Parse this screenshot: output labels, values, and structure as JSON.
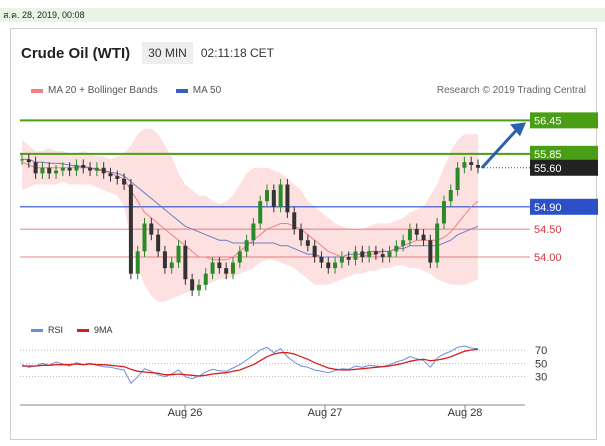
{
  "header": {
    "date_stamp": "ส.ค. 28, 2019, 00:08"
  },
  "chart_header": {
    "instrument": "Crude Oil (WTI)",
    "timeframe": "30 MIN",
    "time": "02:11:18 CET"
  },
  "legend": {
    "bollinger_label": "MA 20 + Bollinger Bands",
    "ma50_label": "MA 50",
    "credit": "Research © 2019 Trading Central"
  },
  "rsi_legend": {
    "rsi_label": "RSI",
    "ma_label": "9MA"
  },
  "colors": {
    "green": "#4a9e16",
    "blue": "#2b50c8",
    "red": "#d9363e",
    "dark_box": "#222222",
    "band_fill": "#fde0e0",
    "candle": "#333333",
    "candle_up": "#2a8a2a",
    "ma20": "#f08080",
    "ma50": "#6f7fc0",
    "rsi": "#6a8fd8",
    "rsi_ma": "#d62020",
    "arrow": "#2960b0"
  },
  "chart_data": {
    "type": "line",
    "x_labels": [
      "Aug 26",
      "Aug 27",
      "Aug 28"
    ],
    "price_axis": {
      "min": 53.3,
      "max": 56.6
    },
    "levels": [
      {
        "value": 56.45,
        "label": "56.45",
        "style": "green-box"
      },
      {
        "value": 55.85,
        "label": "55.85",
        "style": "green-box"
      },
      {
        "value": 55.6,
        "label": "55.60",
        "style": "dark-box"
      },
      {
        "value": 54.9,
        "label": "54.90",
        "style": "blue-box"
      },
      {
        "value": 54.5,
        "label": "54.50",
        "style": "red-text"
      },
      {
        "value": 54.0,
        "label": "54.00",
        "style": "red-text"
      }
    ],
    "price_series": [
      55.75,
      55.7,
      55.5,
      55.6,
      55.5,
      55.55,
      55.6,
      55.55,
      55.65,
      55.6,
      55.55,
      55.6,
      55.5,
      55.45,
      55.4,
      55.3,
      53.7,
      54.1,
      54.6,
      54.4,
      54.1,
      53.8,
      53.9,
      54.2,
      53.6,
      53.4,
      53.5,
      53.7,
      53.9,
      53.8,
      53.7,
      53.9,
      54.1,
      54.3,
      54.6,
      55.0,
      55.2,
      54.9,
      55.3,
      54.8,
      54.5,
      54.3,
      54.2,
      54.0,
      53.9,
      53.8,
      53.9,
      54.0,
      53.95,
      54.1,
      54.0,
      54.1,
      54.05,
      54.0,
      54.1,
      54.2,
      54.3,
      54.5,
      54.4,
      54.3,
      53.9,
      54.6,
      55.0,
      55.2,
      55.6,
      55.7,
      55.65,
      55.6
    ],
    "bollinger_upper": [
      56.1,
      56.0,
      55.9,
      55.9,
      55.95,
      55.9,
      55.9,
      55.85,
      55.85,
      55.9,
      55.85,
      55.8,
      55.8,
      55.75,
      55.8,
      55.85,
      56.0,
      56.2,
      56.3,
      56.3,
      56.2,
      56.0,
      55.8,
      55.5,
      55.3,
      55.2,
      55.1,
      55.1,
      55.0,
      54.95,
      55.0,
      55.1,
      55.3,
      55.5,
      55.6,
      55.6,
      55.6,
      55.55,
      55.5,
      55.4,
      55.3,
      55.2,
      55.0,
      54.9,
      54.8,
      54.7,
      54.6,
      54.55,
      54.5,
      54.5,
      54.5,
      54.55,
      54.6,
      54.6,
      54.6,
      54.65,
      54.7,
      54.8,
      54.85,
      54.9,
      55.1,
      55.3,
      55.6,
      55.9,
      56.1,
      56.2,
      56.2,
      56.2
    ],
    "bollinger_lower": [
      55.2,
      55.25,
      55.3,
      55.3,
      55.3,
      55.3,
      55.35,
      55.3,
      55.3,
      55.3,
      55.3,
      55.25,
      55.2,
      55.15,
      55.1,
      54.9,
      54.3,
      53.8,
      53.5,
      53.3,
      53.2,
      53.2,
      53.25,
      53.3,
      53.35,
      53.4,
      53.45,
      53.5,
      53.55,
      53.6,
      53.6,
      53.65,
      53.7,
      53.75,
      53.8,
      53.9,
      53.95,
      53.95,
      53.9,
      53.85,
      53.8,
      53.7,
      53.6,
      53.5,
      53.5,
      53.5,
      53.55,
      53.6,
      53.65,
      53.7,
      53.7,
      53.75,
      53.75,
      53.8,
      53.8,
      53.85,
      53.85,
      53.8,
      53.8,
      53.75,
      53.7,
      53.6,
      53.55,
      53.5,
      53.5,
      53.5,
      53.55,
      53.6
    ],
    "ma20": [
      55.7,
      55.65,
      55.6,
      55.6,
      55.6,
      55.6,
      55.6,
      55.6,
      55.6,
      55.6,
      55.6,
      55.55,
      55.55,
      55.5,
      55.45,
      55.4,
      55.2,
      55.0,
      54.8,
      54.7,
      54.6,
      54.5,
      54.4,
      54.3,
      54.2,
      54.1,
      54.0,
      54.0,
      53.95,
      53.95,
      53.95,
      54.0,
      54.1,
      54.2,
      54.3,
      54.4,
      54.5,
      54.55,
      54.6,
      54.6,
      54.55,
      54.5,
      54.4,
      54.3,
      54.2,
      54.1,
      54.05,
      54.0,
      54.0,
      54.0,
      54.0,
      54.05,
      54.05,
      54.1,
      54.1,
      54.15,
      54.2,
      54.25,
      54.3,
      54.3,
      54.3,
      54.3,
      54.35,
      54.45,
      54.6,
      54.75,
      54.9,
      55.0
    ],
    "ma50": [
      55.75,
      55.75,
      55.7,
      55.7,
      55.68,
      55.68,
      55.67,
      55.65,
      55.63,
      55.62,
      55.6,
      55.58,
      55.55,
      55.52,
      55.5,
      55.45,
      55.35,
      55.25,
      55.15,
      55.05,
      54.95,
      54.85,
      54.75,
      54.65,
      54.55,
      54.5,
      54.45,
      54.4,
      54.35,
      54.3,
      54.3,
      54.25,
      54.25,
      54.25,
      54.25,
      54.25,
      54.25,
      54.25,
      54.2,
      54.2,
      54.15,
      54.1,
      54.05,
      54.05,
      54.0,
      54.0,
      54.0,
      54.0,
      54.05,
      54.05,
      54.05,
      54.1,
      54.1,
      54.1,
      54.1,
      54.15,
      54.15,
      54.2,
      54.2,
      54.2,
      54.2,
      54.2,
      54.25,
      54.3,
      54.4,
      54.45,
      54.5,
      54.55
    ],
    "rsi_axis": {
      "ticks": [
        70,
        50,
        30
      ],
      "min": 10,
      "max": 85
    },
    "rsi": [
      48,
      44,
      46,
      50,
      47,
      52,
      49,
      46,
      51,
      48,
      50,
      47,
      45,
      44,
      42,
      40,
      20,
      30,
      42,
      38,
      33,
      30,
      34,
      40,
      30,
      27,
      31,
      37,
      41,
      39,
      38,
      43,
      48,
      55,
      62,
      70,
      74,
      66,
      72,
      60,
      52,
      46,
      44,
      40,
      38,
      36,
      39,
      42,
      41,
      46,
      44,
      47,
      46,
      45,
      48,
      52,
      55,
      60,
      57,
      54,
      44,
      58,
      64,
      68,
      74,
      76,
      73,
      72
    ],
    "rsi_ma": [
      46,
      46,
      46,
      47,
      47,
      48,
      48,
      48,
      49,
      48,
      49,
      48,
      48,
      47,
      46,
      45,
      41,
      38,
      37,
      36,
      35,
      33,
      33,
      34,
      33,
      32,
      31,
      32,
      34,
      35,
      36,
      38,
      40,
      44,
      48,
      54,
      60,
      64,
      66,
      66,
      64,
      60,
      56,
      51,
      47,
      43,
      41,
      40,
      40,
      41,
      42,
      43,
      44,
      45,
      46,
      48,
      50,
      53,
      55,
      56,
      54,
      55,
      57,
      60,
      64,
      68,
      70,
      71
    ]
  }
}
